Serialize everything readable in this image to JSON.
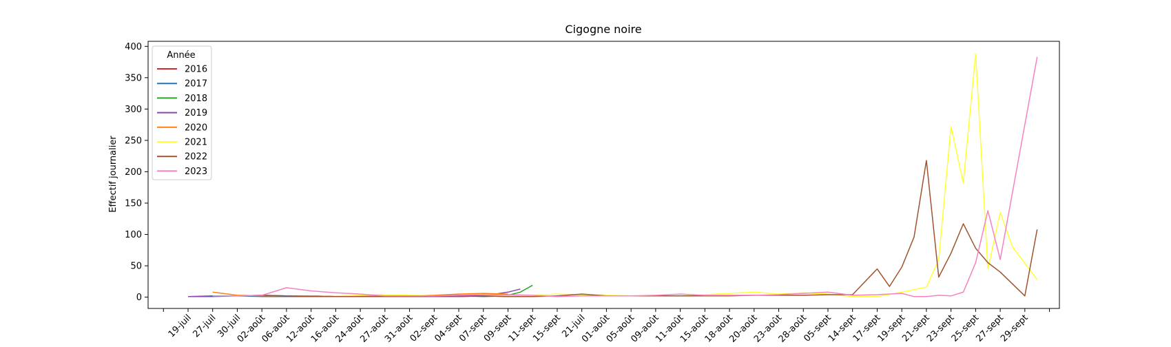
{
  "chart_data": {
    "type": "line",
    "title": "Cigogne noire",
    "xlabel": "",
    "ylabel": "Effectif journalier",
    "ylim": [
      -18,
      408
    ],
    "yticks": [
      0,
      50,
      100,
      150,
      200,
      250,
      300,
      350,
      400
    ],
    "grid": false,
    "legend": {
      "title": "Année",
      "position": "top-left"
    },
    "categories": [
      "19-juil",
      "27-juil",
      "30-juil",
      "02-août",
      "06-août",
      "12-août",
      "16-août",
      "24-août",
      "27-août",
      "31-août",
      "02-sept",
      "04-sept",
      "07-sept",
      "09-sept",
      "11-sept",
      "15-sept",
      "21-juil",
      "01-août",
      "05-août",
      "09-août",
      "11-août",
      "15-août",
      "18-août",
      "20-août",
      "23-août",
      "28-août",
      "05-sept",
      "14-sept",
      "17-sept",
      "19-sept",
      "21-sept",
      "23-sept",
      "25-sept",
      "27-sept",
      "29-sept"
    ],
    "series": [
      {
        "name": "2016",
        "color": "#d62728",
        "x": [
          5,
          6,
          7,
          8,
          9,
          10,
          11,
          12,
          13
        ],
        "y": [
          2,
          1,
          1,
          1,
          2,
          1,
          1,
          2,
          1
        ]
      },
      {
        "name": "2017",
        "color": "#1f77b4",
        "x": [
          0,
          1,
          2,
          3,
          4,
          5,
          6,
          7,
          8,
          9,
          10,
          11,
          12,
          13
        ],
        "y": [
          1,
          1,
          2,
          1,
          1,
          1,
          1,
          1,
          2,
          1,
          1,
          2,
          1,
          2
        ]
      },
      {
        "name": "2018",
        "color": "#2ca02c",
        "x": [
          9,
          10,
          11,
          12,
          13,
          13.5,
          14
        ],
        "y": [
          2,
          2,
          3,
          3,
          3,
          8,
          19
        ]
      },
      {
        "name": "2019",
        "color": "#8e44ad",
        "x": [
          0,
          1,
          2,
          3,
          4,
          5,
          6,
          7,
          8,
          9,
          10,
          11,
          12,
          13,
          13.5
        ],
        "y": [
          1,
          2,
          2,
          3,
          2,
          2,
          1,
          1,
          1,
          1,
          1,
          1,
          2,
          8,
          13
        ]
      },
      {
        "name": "2020",
        "color": "#ff7f0e",
        "x": [
          1,
          2,
          3,
          4,
          5,
          6,
          7,
          8,
          9,
          10,
          11,
          12,
          13
        ],
        "y": [
          8,
          3,
          2,
          2,
          2,
          1,
          2,
          2,
          2,
          3,
          5,
          6,
          5
        ]
      },
      {
        "name": "2021",
        "color": "#ffff33",
        "x": [
          6,
          7,
          8,
          9,
          10,
          11,
          12,
          13,
          14,
          15,
          16,
          17,
          18,
          19,
          20,
          21,
          22,
          23,
          24,
          25,
          26,
          27,
          28,
          29,
          29.5,
          30,
          30.5,
          31,
          31.5,
          32,
          32.5,
          33,
          33.5,
          34.5
        ],
        "y": [
          2,
          3,
          4,
          3,
          2,
          2,
          3,
          2,
          3,
          5,
          4,
          3,
          2,
          2,
          2,
          4,
          6,
          8,
          5,
          7,
          5,
          1,
          1,
          8,
          12,
          16,
          60,
          272,
          182,
          388,
          45,
          135,
          80,
          28
        ]
      },
      {
        "name": "2022",
        "color": "#a0522d",
        "x": [
          2,
          3,
          4,
          5,
          6,
          7,
          8,
          9,
          10,
          11,
          12,
          13,
          14,
          15,
          16,
          17,
          18,
          19,
          20,
          21,
          22,
          23,
          24,
          25,
          26,
          27,
          28,
          28.5,
          29,
          29.5,
          30,
          30.5,
          31,
          31.5,
          32,
          32.5,
          33,
          34,
          34.5
        ],
        "y": [
          2,
          3,
          2,
          1,
          1,
          1,
          1,
          1,
          2,
          2,
          2,
          1,
          1,
          2,
          5,
          2,
          2,
          2,
          2,
          2,
          2,
          3,
          3,
          3,
          4,
          4,
          45,
          17,
          48,
          96,
          218,
          32,
          70,
          117,
          78,
          55,
          40,
          2,
          108
        ]
      },
      {
        "name": "2023",
        "color": "#f781bf",
        "x": [
          1,
          2,
          3,
          4,
          5,
          6,
          7,
          8,
          9,
          10,
          11,
          12,
          13,
          14,
          15,
          16,
          17,
          18,
          19,
          20,
          21,
          22,
          23,
          24,
          25,
          26,
          27,
          28,
          29,
          29.5,
          30,
          30.5,
          31,
          31.5,
          32,
          32.5,
          33,
          34.5
        ],
        "y": [
          2,
          2,
          3,
          15,
          10,
          7,
          5,
          2,
          2,
          2,
          3,
          4,
          4,
          3,
          1,
          2,
          2,
          2,
          3,
          5,
          3,
          3,
          3,
          4,
          6,
          8,
          3,
          4,
          6,
          1,
          1,
          3,
          2,
          8,
          55,
          138,
          60,
          383
        ]
      }
    ]
  }
}
